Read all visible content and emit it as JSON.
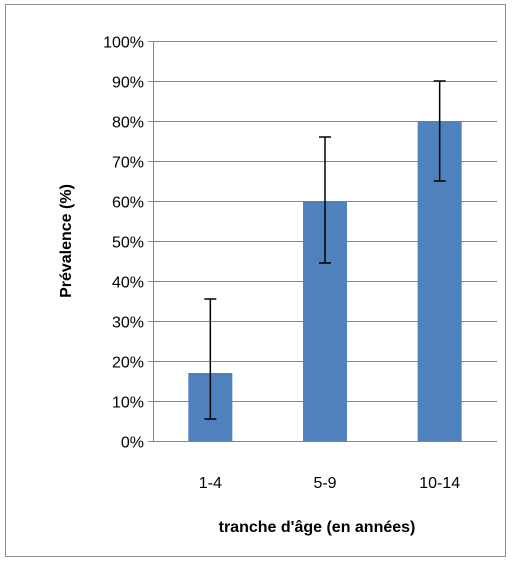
{
  "chart_data": {
    "type": "bar",
    "categories": [
      "1-4",
      "5-9",
      "10-14"
    ],
    "values": [
      17,
      60,
      80
    ],
    "error_low": [
      5.5,
      44.5,
      65
    ],
    "error_high": [
      35.5,
      76,
      90
    ],
    "xlabel": "tranche d'âge (en années)",
    "ylabel": "Prévalence (%)",
    "ylim": [
      0,
      100
    ],
    "yticks": [
      "0%",
      "10%",
      "20%",
      "30%",
      "40%",
      "50%",
      "60%",
      "70%",
      "80%",
      "90%",
      "100%"
    ],
    "grid": true,
    "bar_color": "#4f81bd",
    "grid_color": "#868686",
    "error_bar_color": "#000000"
  }
}
